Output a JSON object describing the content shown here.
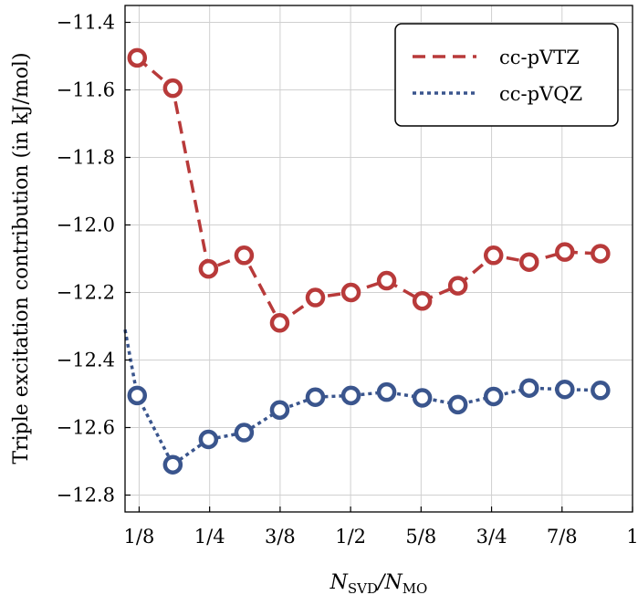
{
  "chart_data": {
    "type": "line",
    "ylabel": "Triple excitation contribution (in kJ/mol)",
    "xlabel_main": "N",
    "xlabel_sub1": "SVD",
    "xlabel_sep": "/N",
    "xlabel_sub2": "MO",
    "xlim": [
      0.1,
      1.0
    ],
    "ylim": [
      -12.85,
      -11.35
    ],
    "xticks": [
      {
        "value": 0.125,
        "label": "1/8"
      },
      {
        "value": 0.25,
        "label": "1/4"
      },
      {
        "value": 0.375,
        "label": "3/8"
      },
      {
        "value": 0.5,
        "label": "1/2"
      },
      {
        "value": 0.625,
        "label": "5/8"
      },
      {
        "value": 0.75,
        "label": "3/4"
      },
      {
        "value": 0.875,
        "label": "7/8"
      },
      {
        "value": 1.0,
        "label": "1"
      }
    ],
    "yticks": [
      {
        "value": -11.4,
        "label": "−11.4"
      },
      {
        "value": -11.6,
        "label": "−11.6"
      },
      {
        "value": -11.8,
        "label": "−11.8"
      },
      {
        "value": -12.0,
        "label": "−12.0"
      },
      {
        "value": -12.2,
        "label": "−12.2"
      },
      {
        "value": -12.4,
        "label": "−12.4"
      },
      {
        "value": -12.6,
        "label": "−12.6"
      },
      {
        "value": -12.8,
        "label": "−12.8"
      }
    ],
    "grid": true,
    "legend_position": "top-right",
    "series": [
      {
        "name": "cc-pVTZ",
        "color": "#b83a3a",
        "linestyle": "dashed",
        "x": [
          0.1215,
          0.1847,
          0.2479,
          0.3111,
          0.3743,
          0.4375,
          0.5007,
          0.5639,
          0.6271,
          0.6903,
          0.7535,
          0.8167,
          0.8799,
          0.9431
        ],
        "y": [
          -11.505,
          -11.595,
          -12.13,
          -12.09,
          -12.29,
          -12.215,
          -12.2,
          -12.165,
          -12.225,
          -12.18,
          -12.09,
          -12.11,
          -12.08,
          -12.085
        ]
      },
      {
        "name": "cc-pVQZ",
        "color": "#3a558d",
        "linestyle": "dotted",
        "line_start": {
          "x": 0.1,
          "y": -12.31
        },
        "x": [
          0.1215,
          0.1847,
          0.2479,
          0.3111,
          0.3743,
          0.4375,
          0.5007,
          0.5639,
          0.6271,
          0.6903,
          0.7535,
          0.8167,
          0.8799,
          0.9431
        ],
        "y": [
          -12.505,
          -12.71,
          -12.635,
          -12.615,
          -12.548,
          -12.51,
          -12.505,
          -12.495,
          -12.512,
          -12.532,
          -12.508,
          -12.483,
          -12.487,
          -12.49
        ]
      }
    ]
  }
}
